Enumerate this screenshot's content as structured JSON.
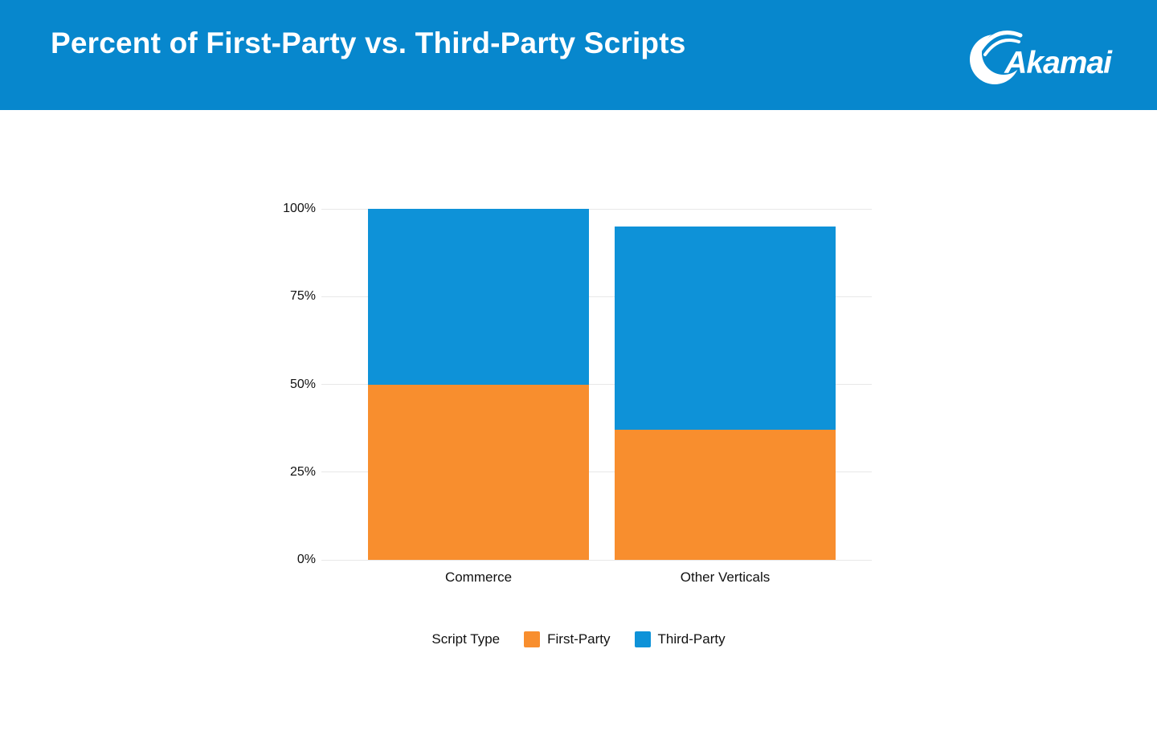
{
  "header": {
    "title": "Percent of First-Party vs. Third-Party Scripts",
    "background": "#0787cd",
    "logo_text": "Akamai"
  },
  "chart_data": {
    "type": "bar",
    "stacked": true,
    "title": "Percent of First-Party vs. Third-Party Scripts",
    "categories": [
      "Commerce",
      "Other Verticals"
    ],
    "series": [
      {
        "name": "First-Party",
        "color": "#f88e2e",
        "values": [
          50,
          37
        ]
      },
      {
        "name": "Third-Party",
        "color": "#0e92d8",
        "values": [
          50,
          58
        ]
      }
    ],
    "xlabel": "",
    "ylabel": "",
    "ylim": [
      0,
      100
    ],
    "y_ticks": [
      "0%",
      "25%",
      "50%",
      "75%",
      "100%"
    ],
    "y_tick_values": [
      0,
      25,
      50,
      75,
      100
    ],
    "grid": true,
    "grid_color": "#e8e8e8",
    "legend_title": "Script Type",
    "legend_position": "bottom"
  }
}
